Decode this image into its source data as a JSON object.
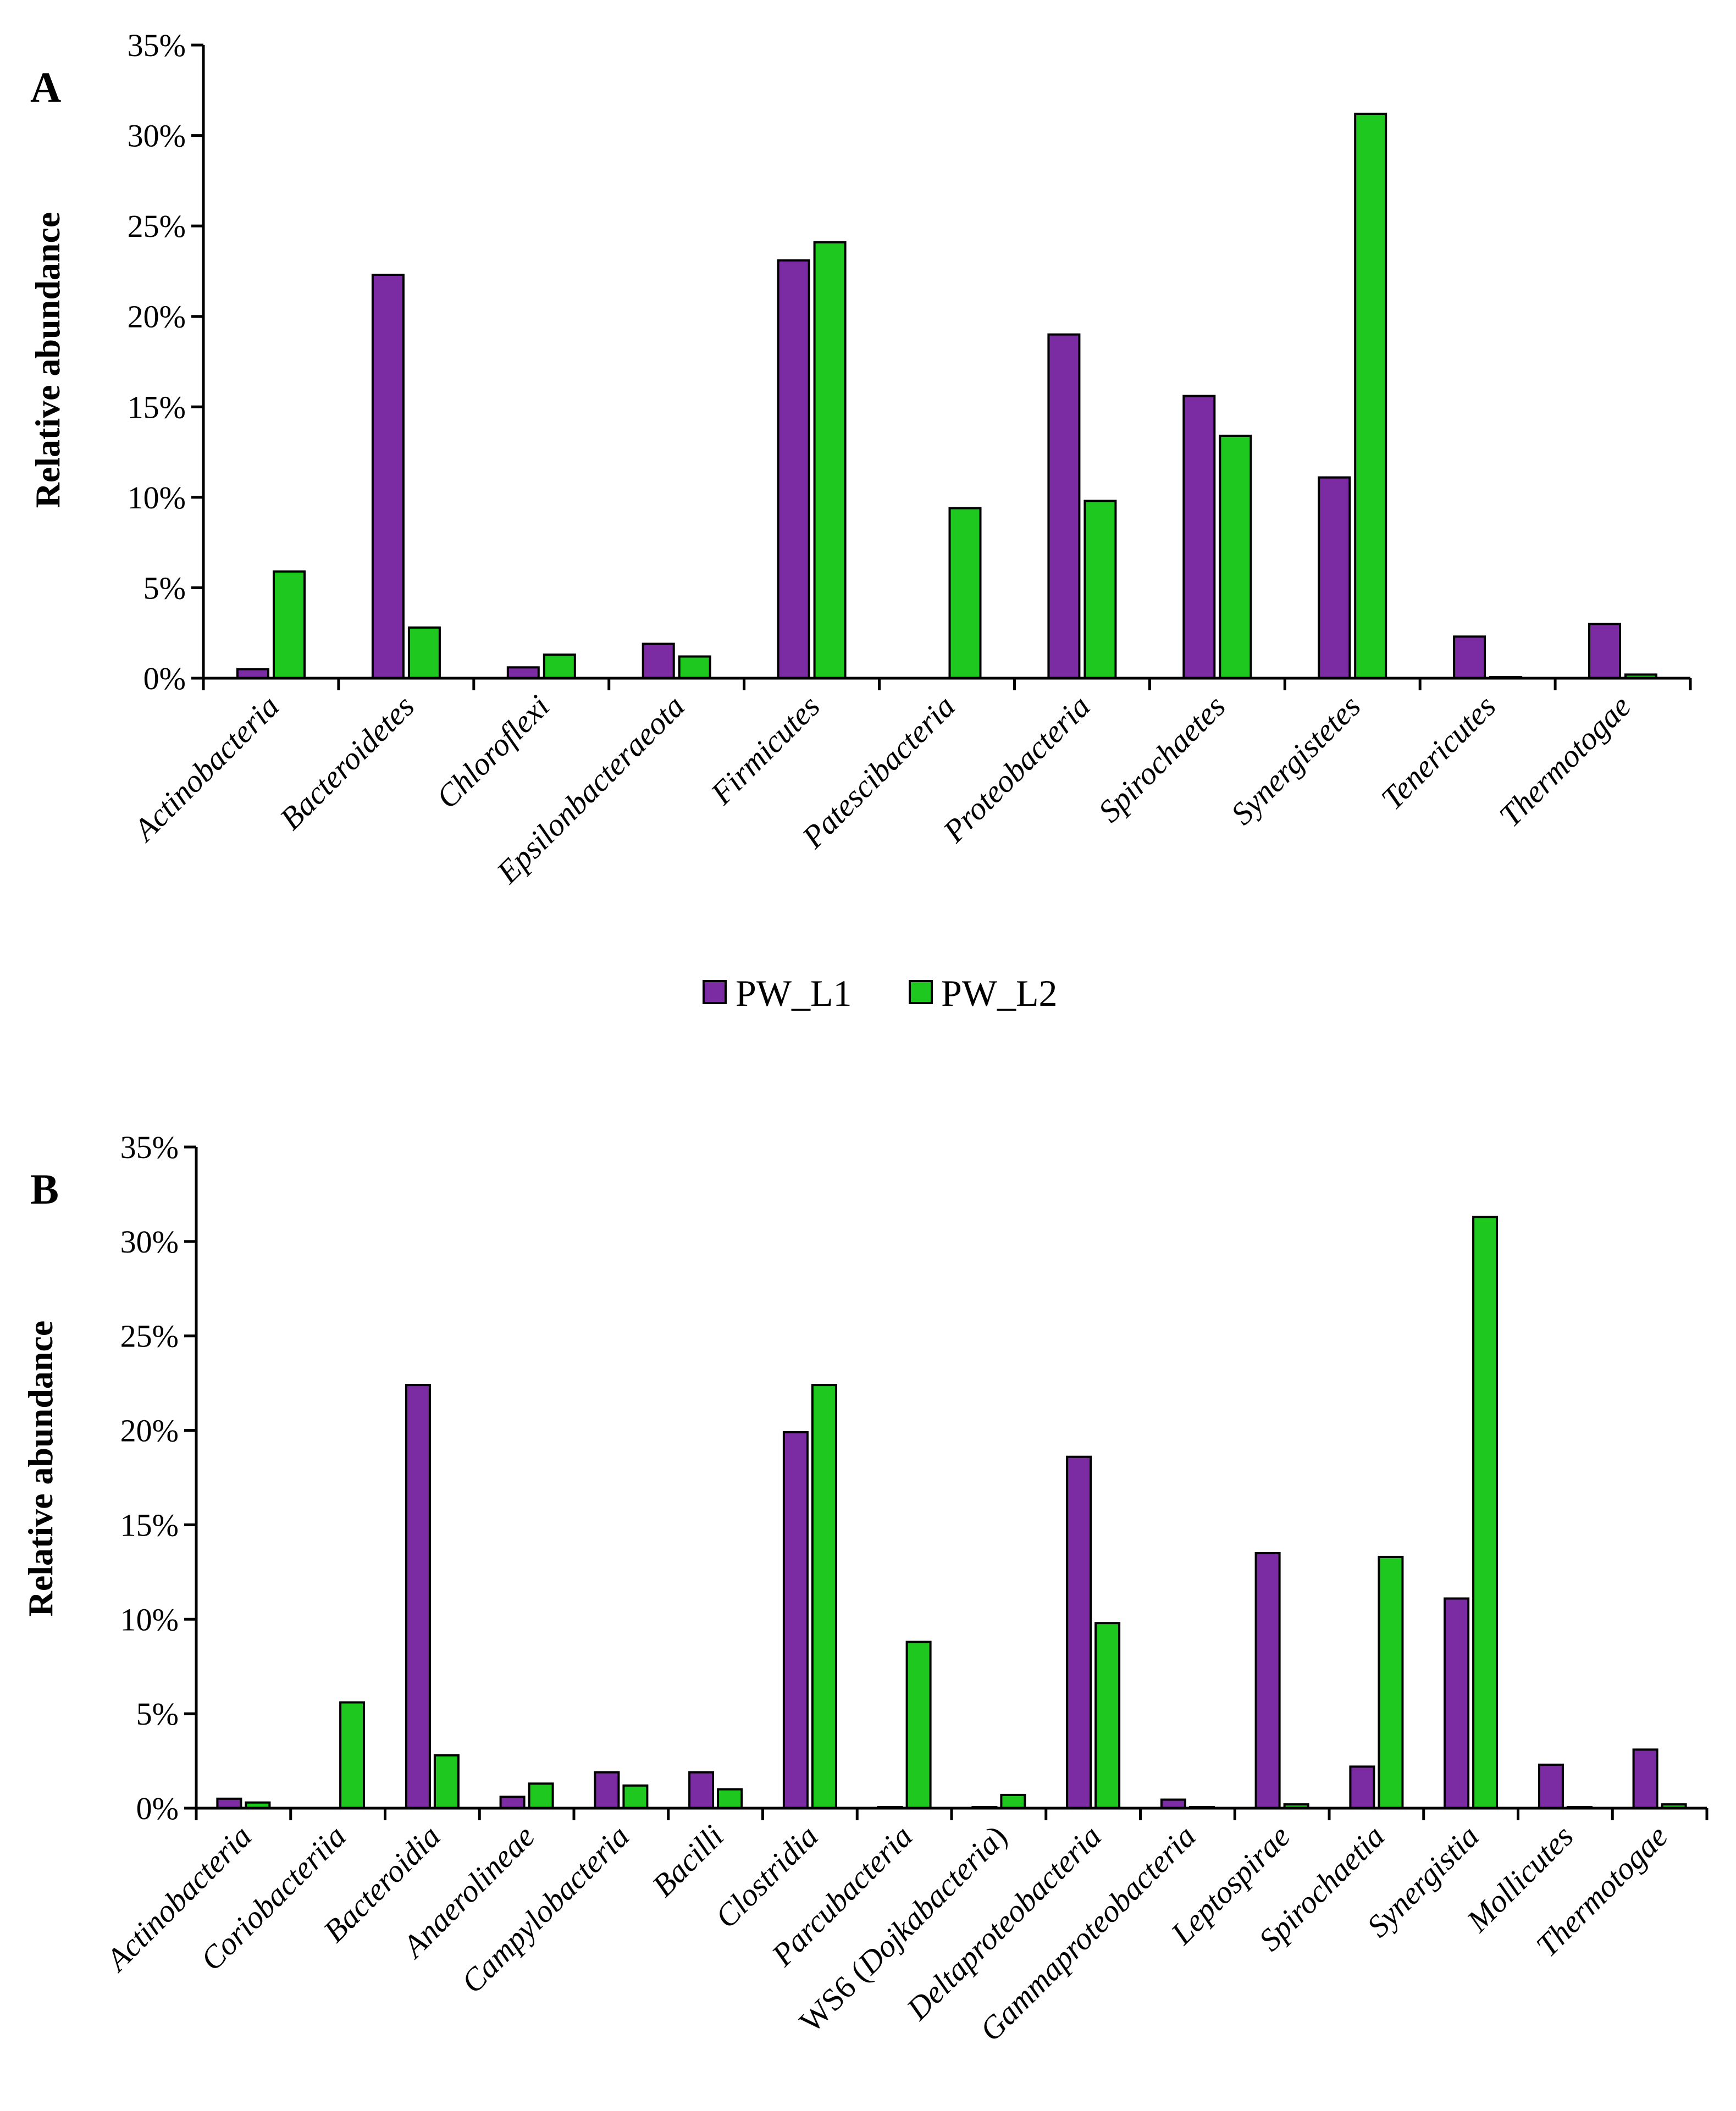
{
  "legend": {
    "items": [
      {
        "name": "PW_L1",
        "color": "#7B2CA3"
      },
      {
        "name": "PW_L2",
        "color": "#1EC81E"
      }
    ]
  },
  "chart_data": [
    {
      "type": "bar",
      "panel": "A",
      "ylabel": "Relative abundance",
      "ylim": [
        0,
        35
      ],
      "yticks": [
        "0%",
        "5%",
        "10%",
        "15%",
        "20%",
        "25%",
        "30%",
        "35%"
      ],
      "categories": [
        "Actinobacteria",
        "Bacteroidetes",
        "Chloroflexi",
        "Epsilonbacteraeota",
        "Firmicutes",
        "Patescibacteria",
        "Proteobacteria",
        "Spirochaetes",
        "Synergistetes",
        "Tenericutes",
        "Thermotogae"
      ],
      "series": [
        {
          "name": "PW_L1",
          "values": [
            0.5,
            22.3,
            0.6,
            1.9,
            23.1,
            0.0,
            19.0,
            15.6,
            11.1,
            2.3,
            3.0
          ]
        },
        {
          "name": "PW_L2",
          "values": [
            5.9,
            2.8,
            1.3,
            1.2,
            24.1,
            9.4,
            9.8,
            13.4,
            31.2,
            0.05,
            0.2
          ]
        }
      ]
    },
    {
      "type": "bar",
      "panel": "B",
      "ylabel": "Relative abundance",
      "ylim": [
        0,
        35
      ],
      "yticks": [
        "0%",
        "5%",
        "10%",
        "15%",
        "20%",
        "25%",
        "30%",
        "35%"
      ],
      "categories": [
        "Actinobacteria",
        "Coriobacteriia",
        "Bacteroidia",
        "Anaerolineae",
        "Campylobacteria",
        "Bacilli",
        "Clostridia",
        "Parcubacteria",
        "WS6 (Dojkabacteria)",
        "Deltaproteobacteria",
        "Gammaproteobacteria",
        "Leptospirae",
        "Spirochaetia",
        "Synergistia",
        "Mollicutes",
        "Thermotogae"
      ],
      "series": [
        {
          "name": "PW_L1",
          "values": [
            0.5,
            0.0,
            22.4,
            0.6,
            1.9,
            1.9,
            19.9,
            0.05,
            0.05,
            18.6,
            0.45,
            13.5,
            2.2,
            11.1,
            2.3,
            3.1
          ]
        },
        {
          "name": "PW_L2",
          "values": [
            0.3,
            5.6,
            2.8,
            1.3,
            1.2,
            1.0,
            22.4,
            8.8,
            0.7,
            9.8,
            0.05,
            0.2,
            13.3,
            31.3,
            0.05,
            0.2
          ]
        }
      ]
    }
  ]
}
